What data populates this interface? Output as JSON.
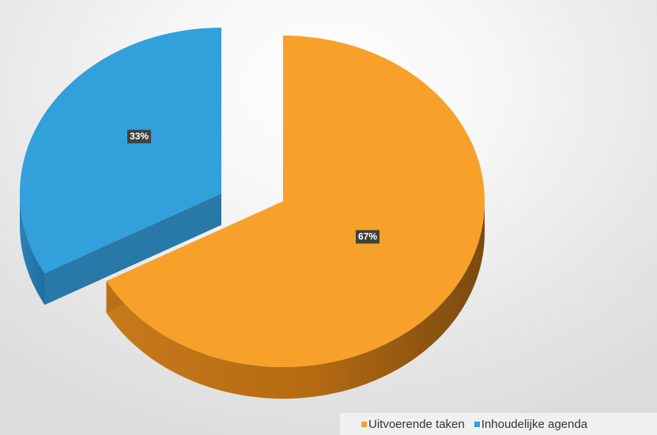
{
  "chart_data": {
    "type": "pie",
    "title": "",
    "style": "3d-exploded",
    "categories": [
      "Uitvoerende taken",
      "Inhoudelijke agenda"
    ],
    "values": [
      67,
      33
    ],
    "unit": "%",
    "data_labels": [
      "67%",
      "33%"
    ],
    "colors": [
      "#F7A12A",
      "#32A0DB"
    ],
    "legend_position": "bottom-right"
  }
}
